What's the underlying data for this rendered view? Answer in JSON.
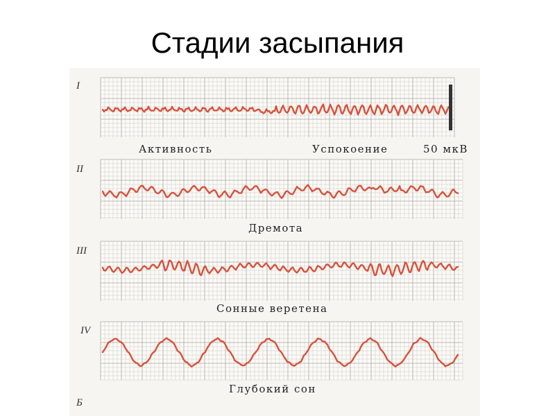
{
  "slide": {
    "title": "Стадии засыпания"
  },
  "panels": [
    {
      "id": "stage-1",
      "numeral": "I",
      "captions": [
        "Активность",
        "Успокоение"
      ],
      "scale_label": "50 мкВ"
    },
    {
      "id": "stage-2",
      "numeral": "II",
      "captions": [
        "Дремота"
      ]
    },
    {
      "id": "stage-3",
      "numeral": "III",
      "captions": [
        "Сонные веретена"
      ]
    },
    {
      "id": "stage-4",
      "numeral": "IV",
      "captions": [
        "Глубокий сон"
      ]
    }
  ],
  "footer": {
    "numeral": "Б"
  },
  "colors": {
    "trace": "#d8513b",
    "grid": "#c9c7c2"
  }
}
